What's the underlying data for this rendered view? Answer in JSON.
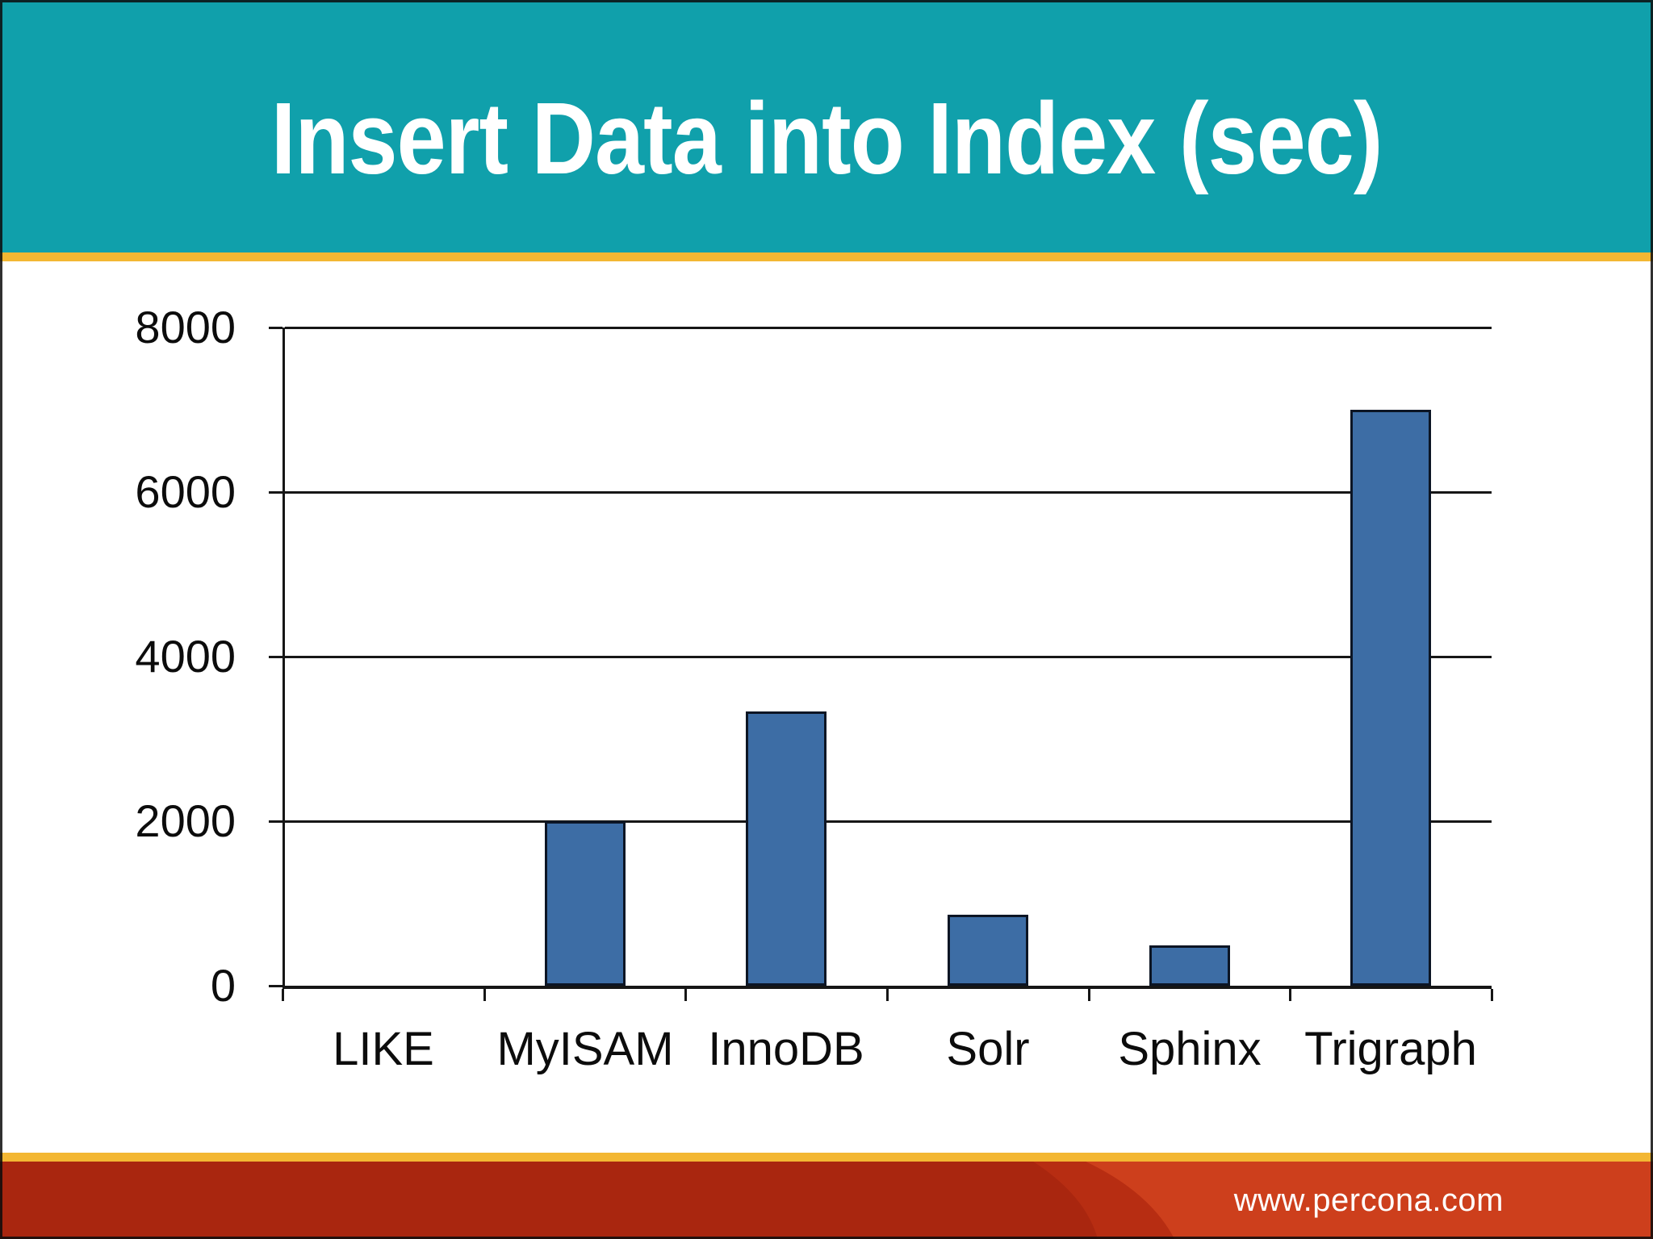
{
  "slide": {
    "title": "Insert Data into Index (sec)",
    "footer_url": "www.percona.com"
  },
  "theme": {
    "header_teal": "#10a0ab",
    "gold_stripe": "#f3b733",
    "axis_color": "#161616",
    "bar_fill": "#3d6da5",
    "bar_outline": "#0c1524",
    "footer_dark_red": "#a9260f",
    "footer_mid_red": "#b72d12",
    "footer_light_red": "#cd3f1c",
    "title_color": "#ffffff",
    "footer_text_color": "#ffffff"
  },
  "chart_data": {
    "type": "bar",
    "title": "Insert Data into Index (sec)",
    "categories": [
      "LIKE",
      "MyISAM",
      "InnoDB",
      "Solr",
      "Sphinx",
      "Trigraph"
    ],
    "values": [
      0,
      2000,
      3330,
      860,
      490,
      7000
    ],
    "xlabel": "",
    "ylabel": "",
    "ylim": [
      0,
      8000
    ],
    "ytick_interval": 2000,
    "yticks": [
      "8000",
      "6000",
      "4000",
      "2000",
      "0"
    ],
    "grid": "horizontal-only",
    "legend": "none",
    "bar_color": "#3d6da5"
  }
}
